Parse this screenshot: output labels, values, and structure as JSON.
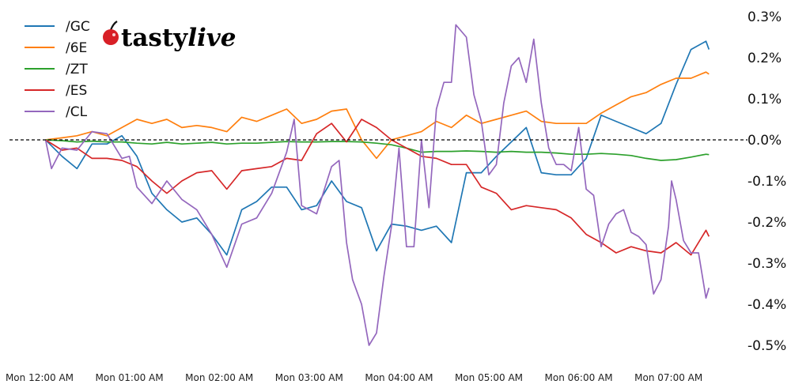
{
  "logo": {
    "text_a": "tasty",
    "text_b": "live",
    "cherry_color": "#d81f26"
  },
  "chart_data": {
    "type": "line",
    "title": "",
    "xlabel": "",
    "ylabel": "",
    "ylim": [
      -0.55,
      0.31
    ],
    "xlim": [
      "-0:05",
      "7:55"
    ],
    "grid": false,
    "legend": "top-left",
    "zero_line": {
      "value": 0,
      "style": "dashed",
      "color": "#000000"
    },
    "yticks": [
      0.3,
      0.2,
      0.1,
      0.0,
      -0.1,
      -0.2,
      -0.3,
      -0.4,
      -0.5
    ],
    "ytick_labels": [
      "0.3%",
      "0.2%",
      "0.1%",
      "0.0%",
      "-0.1%",
      "-0.2%",
      "-0.3%",
      "-0.4%",
      "-0.5%"
    ],
    "xticks": [
      "0:00",
      "1:00",
      "2:00",
      "3:00",
      "4:00",
      "5:00",
      "6:00",
      "7:00"
    ],
    "xtick_labels": [
      "Mon 12:00 AM",
      "Mon 01:00 AM",
      "Mon 02:00 AM",
      "Mon 03:00 AM",
      "Mon 04:00 AM",
      "Mon 05:00 AM",
      "Mon 06:00 AM",
      "Mon 07:00 AM"
    ],
    "x": [
      "0:04",
      "0:15",
      "0:25",
      "0:35",
      "0:45",
      "0:55",
      "1:05",
      "1:15",
      "1:25",
      "1:35",
      "1:45",
      "1:55",
      "2:05",
      "2:15",
      "2:25",
      "2:35",
      "2:45",
      "2:55",
      "3:05",
      "3:15",
      "3:25",
      "3:35",
      "3:45",
      "3:55",
      "4:05",
      "4:15",
      "4:25",
      "4:35",
      "4:45",
      "4:55",
      "5:05",
      "5:15",
      "5:25",
      "5:35",
      "5:45",
      "5:55",
      "6:05",
      "6:15",
      "6:25",
      "6:35",
      "6:45",
      "6:55",
      "7:05",
      "7:15",
      "7:25",
      "7:27"
    ],
    "series": [
      {
        "name": "/GC",
        "color": "#1f77b4",
        "values": [
          0,
          -0.04,
          -0.07,
          -0.01,
          -0.01,
          0.01,
          -0.04,
          -0.13,
          -0.17,
          -0.2,
          -0.19,
          -0.23,
          -0.28,
          -0.17,
          -0.15,
          -0.115,
          -0.115,
          -0.17,
          -0.16,
          -0.1,
          -0.15,
          -0.165,
          -0.27,
          -0.205,
          -0.21,
          -0.22,
          -0.21,
          -0.25,
          -0.08,
          -0.08,
          -0.04,
          -0.005,
          0.03,
          -0.08,
          -0.085,
          -0.085,
          -0.045,
          0.06,
          0.045,
          0.03,
          0.015,
          0.04,
          0.135,
          0.22,
          0.24,
          0.22
        ]
      },
      {
        "name": "/6E",
        "color": "#ff7f0e",
        "values": [
          0,
          0.005,
          0.01,
          0.02,
          0.01,
          0.03,
          0.05,
          0.04,
          0.05,
          0.03,
          0.035,
          0.03,
          0.02,
          0.055,
          0.045,
          0.06,
          0.075,
          0.04,
          0.05,
          0.07,
          0.075,
          0.0,
          -0.045,
          0.0,
          0.01,
          0.02,
          0.045,
          0.03,
          0.06,
          0.04,
          0.05,
          0.06,
          0.07,
          0.045,
          0.04,
          0.04,
          0.04,
          0.065,
          0.085,
          0.105,
          0.115,
          0.135,
          0.15,
          0.15,
          0.165,
          0.16
        ]
      },
      {
        "name": "/ZT",
        "color": "#2ca02c",
        "values": [
          0,
          -0.002,
          -0.005,
          -0.003,
          -0.005,
          -0.005,
          -0.008,
          -0.01,
          -0.006,
          -0.01,
          -0.008,
          -0.006,
          -0.01,
          -0.008,
          -0.008,
          -0.006,
          -0.004,
          -0.005,
          -0.005,
          -0.004,
          -0.004,
          -0.005,
          -0.008,
          -0.012,
          -0.02,
          -0.03,
          -0.028,
          -0.028,
          -0.027,
          -0.028,
          -0.03,
          -0.028,
          -0.03,
          -0.03,
          -0.032,
          -0.035,
          -0.035,
          -0.033,
          -0.035,
          -0.038,
          -0.045,
          -0.05,
          -0.048,
          -0.042,
          -0.035,
          -0.036
        ]
      },
      {
        "name": "/ES",
        "color": "#d62728",
        "values": [
          0,
          -0.025,
          -0.02,
          -0.045,
          -0.045,
          -0.05,
          -0.065,
          -0.1,
          -0.13,
          -0.1,
          -0.08,
          -0.075,
          -0.12,
          -0.075,
          -0.07,
          -0.065,
          -0.045,
          -0.05,
          0.015,
          0.04,
          -0.005,
          0.05,
          0.03,
          0.0,
          -0.02,
          -0.04,
          -0.045,
          -0.06,
          -0.06,
          -0.115,
          -0.13,
          -0.17,
          -0.16,
          -0.165,
          -0.17,
          -0.19,
          -0.23,
          -0.25,
          -0.275,
          -0.26,
          -0.27,
          -0.275,
          -0.25,
          -0.28,
          -0.22,
          -0.235
        ]
      },
      {
        "name": "/CL",
        "color": "#9467bd",
        "x": [
          "0:04",
          "0:08",
          "0:15",
          "0:25",
          "0:35",
          "0:45",
          "0:55",
          "1:00",
          "1:05",
          "1:15",
          "1:25",
          "1:35",
          "1:45",
          "1:55",
          "2:05",
          "2:15",
          "2:25",
          "2:35",
          "2:45",
          "2:50",
          "2:55",
          "3:05",
          "3:15",
          "3:20",
          "3:25",
          "3:29",
          "3:35",
          "3:40",
          "3:45",
          "3:50",
          "3:55",
          "4:00",
          "4:05",
          "4:10",
          "4:15",
          "4:20",
          "4:25",
          "4:30",
          "4:35",
          "4:38",
          "4:45",
          "4:50",
          "4:55",
          "5:00",
          "5:05",
          "5:10",
          "5:15",
          "5:20",
          "5:25",
          "5:30",
          "5:35",
          "5:40",
          "5:45",
          "5:50",
          "5:55",
          "6:00",
          "6:05",
          "6:10",
          "6:15",
          "6:20",
          "6:25",
          "6:30",
          "6:35",
          "6:40",
          "6:45",
          "6:50",
          "6:55",
          "7:00",
          "7:02",
          "7:05",
          "7:10",
          "7:15",
          "7:20",
          "7:25",
          "7:27"
        ],
        "values": [
          0,
          -0.07,
          -0.02,
          -0.025,
          0.02,
          0.015,
          -0.045,
          -0.04,
          -0.115,
          -0.155,
          -0.1,
          -0.145,
          -0.17,
          -0.23,
          -0.31,
          -0.205,
          -0.19,
          -0.13,
          -0.03,
          0.05,
          -0.16,
          -0.18,
          -0.065,
          -0.05,
          -0.25,
          -0.34,
          -0.4,
          -0.5,
          -0.47,
          -0.33,
          -0.21,
          -0.02,
          -0.26,
          -0.26,
          0.0,
          -0.165,
          0.075,
          0.14,
          0.14,
          0.28,
          0.25,
          0.11,
          0.045,
          -0.085,
          -0.06,
          0.09,
          0.18,
          0.2,
          0.14,
          0.245,
          0.09,
          -0.02,
          -0.06,
          -0.06,
          -0.075,
          0.03,
          -0.12,
          -0.135,
          -0.26,
          -0.205,
          -0.18,
          -0.17,
          -0.225,
          -0.235,
          -0.255,
          -0.375,
          -0.34,
          -0.21,
          -0.1,
          -0.145,
          -0.245,
          -0.275,
          -0.275,
          -0.385,
          -0.36
        ]
      }
    ]
  }
}
